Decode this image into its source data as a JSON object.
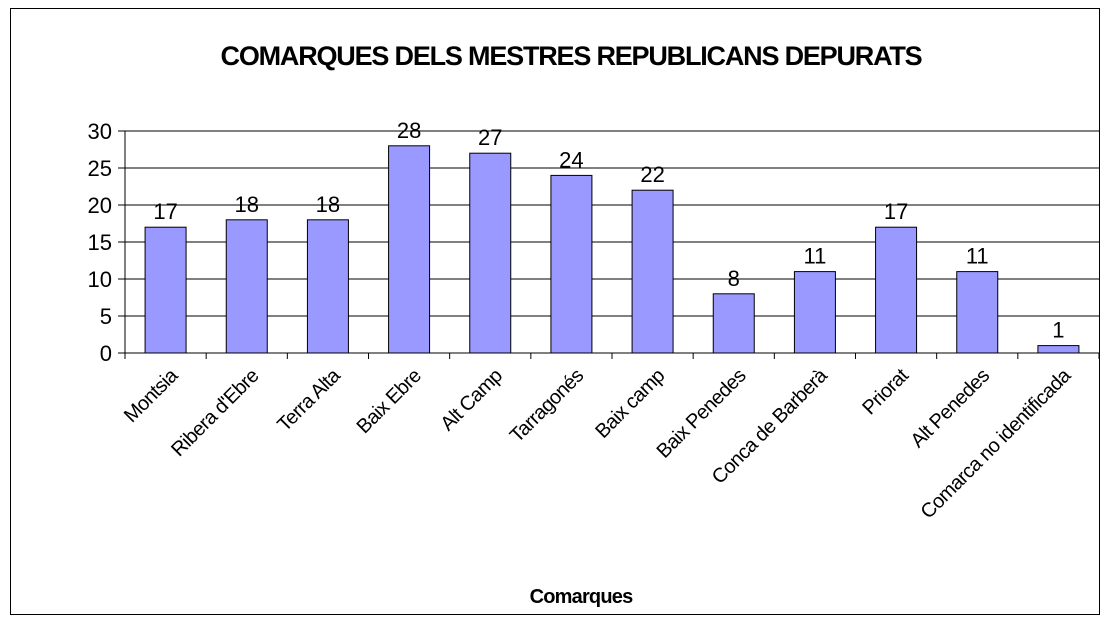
{
  "chart_data": {
    "type": "bar",
    "title": "COMARQUES DELS MESTRES REPUBLICANS DEPURATS",
    "xlabel": "Comarques",
    "ylabel": "",
    "ylim": [
      0,
      30
    ],
    "yticks": [
      0,
      5,
      10,
      15,
      20,
      25,
      30
    ],
    "grid": true,
    "legend": "none",
    "bar_color": "#9999ff",
    "categories": [
      "Montsia",
      "Ribera d'Ebre",
      "Terra Alta",
      "Baix Ebre",
      "Alt Camp",
      "Tarragonés",
      "Baix camp",
      "Baix Penedes",
      "Conca de Barberà",
      "Priorat",
      "Alt Penedes",
      "Comarca no identificada"
    ],
    "values": [
      17,
      18,
      18,
      28,
      27,
      24,
      22,
      8,
      11,
      17,
      11,
      1
    ]
  }
}
